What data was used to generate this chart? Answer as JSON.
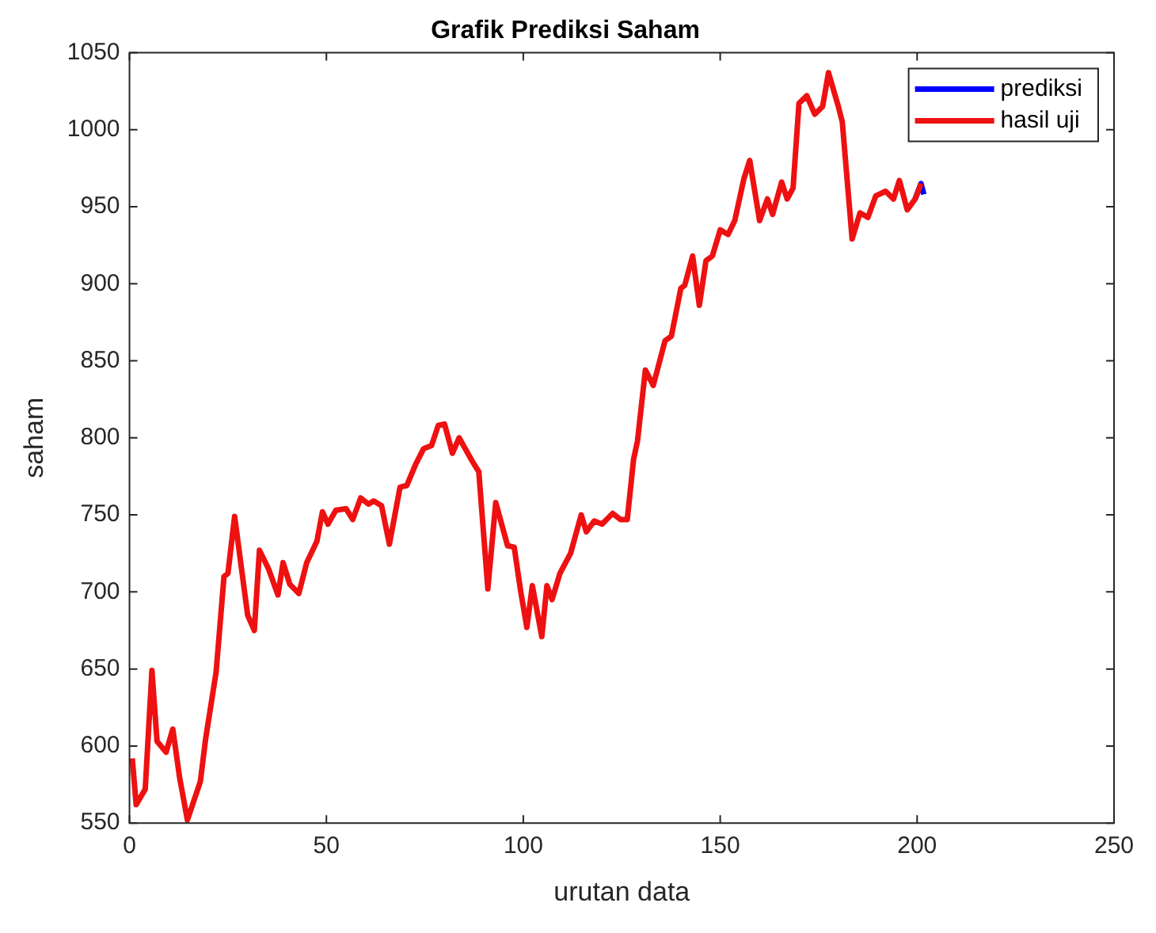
{
  "chart_data": {
    "type": "line",
    "title": "Grafik Prediksi Saham",
    "xlabel": "urutan data",
    "ylabel": "saham",
    "xlim": [
      0,
      250
    ],
    "xticks": [
      0,
      50,
      100,
      150,
      200,
      250
    ],
    "ylim": [
      550,
      1050
    ],
    "yticks": [
      550,
      600,
      650,
      700,
      750,
      800,
      850,
      900,
      950,
      1000,
      1050
    ],
    "grid": false,
    "legend": "top right",
    "marker": "none",
    "line_style": "solid",
    "series": [
      {
        "name": "prediksi",
        "color": "#0000ff",
        "x": [
          199.5,
          201,
          201.7
        ],
        "values": [
          955,
          965,
          958
        ]
      },
      {
        "name": "hasil uji",
        "color": "#ee1111",
        "x": [
          0.7,
          1.7,
          4,
          5.7,
          7,
          9.3,
          11,
          12.7,
          14.7,
          18,
          19.3,
          22,
          24,
          25,
          26.7,
          30,
          31.7,
          33,
          35.3,
          37.7,
          39,
          40.7,
          43,
          45,
          47.6,
          49,
          50.4,
          52.4,
          55,
          56.7,
          58.7,
          60.7,
          62,
          64,
          66,
          68.7,
          70.4,
          72.7,
          74.7,
          76.7,
          78.4,
          80,
          82,
          83.7,
          87,
          88.7,
          91,
          93,
          96,
          97.7,
          99.3,
          100.9,
          102.3,
          104.7,
          106,
          107.3,
          109.3,
          112,
          114.7,
          116,
          118,
          120,
          122.7,
          124.7,
          126.4,
          128,
          129,
          131,
          133,
          136,
          137.6,
          140,
          141,
          143,
          144.7,
          146.4,
          148,
          150,
          152,
          153.7,
          156,
          157.5,
          160,
          162,
          163.3,
          165.6,
          167,
          168.5,
          170,
          172,
          174,
          176,
          177.5,
          180,
          181,
          183.5,
          185.5,
          187.5,
          189.5,
          192,
          194,
          195.5,
          197.5,
          199.5,
          201
        ],
        "values": [
          592,
          562,
          572,
          649,
          603,
          596,
          611,
          580,
          552,
          577,
          604,
          648,
          710,
          712,
          749,
          685,
          675,
          727,
          715,
          698,
          719,
          705,
          699,
          719,
          733,
          752,
          744,
          753,
          754,
          747,
          761,
          757,
          759,
          756,
          731,
          768,
          769,
          783,
          793,
          795,
          808,
          809,
          790,
          800,
          785,
          778,
          702,
          758,
          730,
          729,
          701,
          677,
          704,
          671,
          704,
          695,
          712,
          725,
          750,
          739,
          746,
          744,
          751,
          747,
          747,
          786,
          798,
          844,
          834,
          863,
          866,
          897,
          899,
          918,
          886,
          915,
          918,
          935,
          932,
          941,
          968,
          980,
          941,
          955,
          945,
          966,
          955,
          962,
          1017,
          1022,
          1010,
          1015,
          1037,
          1015,
          1005,
          929,
          946,
          943,
          957,
          960,
          955,
          967,
          948,
          955,
          965
        ]
      }
    ]
  }
}
